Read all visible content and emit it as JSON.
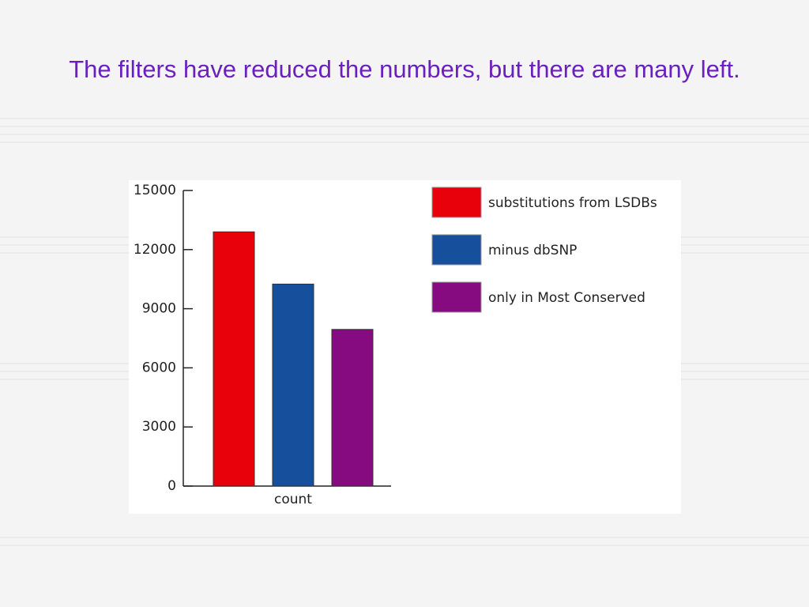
{
  "chart_data": {
    "type": "bar",
    "title": "The filters have reduced the numbers, but there are many left.",
    "categories": [
      "count"
    ],
    "series": [
      {
        "name": "substitutions from LSDBs",
        "color": "#e8000b",
        "values": [
          12900
        ]
      },
      {
        "name": "minus dbSNP",
        "color": "#164f9c",
        "values": [
          10250
        ]
      },
      {
        "name": "only in Most Conserved",
        "color": "#860a80",
        "values": [
          7950
        ]
      }
    ],
    "ylim": [
      0,
      15000
    ],
    "yticks": [
      0,
      3000,
      6000,
      9000,
      12000,
      15000
    ],
    "legend": "upper right"
  }
}
